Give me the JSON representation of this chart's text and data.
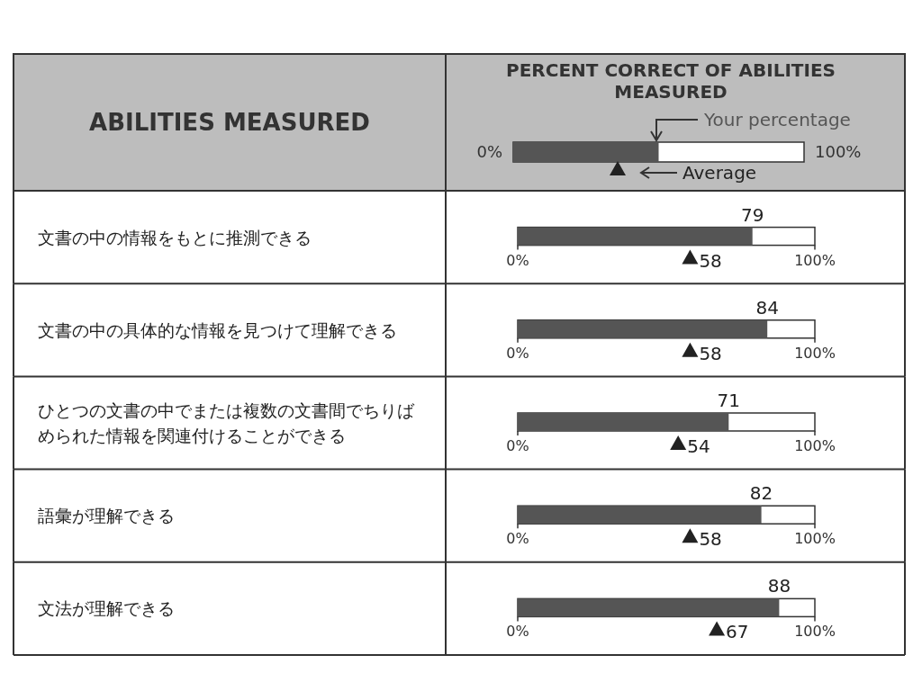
{
  "chart_data": {
    "type": "bar",
    "orientation": "horizontal",
    "title": "PERCENT CORRECT OF ABILITIES MEASURED",
    "ylabel": "ABILITIES MEASURED",
    "categories": [
      "文書の中の情報をもとに推測できる",
      "文書の中の具体的な情報を見つけて理解できる",
      "ひとつの文書の中でまたは複数の文書間でちりばめられた情報を関連付けることができる",
      "語彙が理解できる",
      "文法が理解できる"
    ],
    "series": [
      {
        "name": "Your percentage",
        "color": "#555555",
        "values": [
          79,
          84,
          71,
          82,
          88
        ]
      },
      {
        "name": "Average",
        "type": "scatter",
        "color": "#222222",
        "values": [
          58,
          58,
          54,
          58,
          67
        ]
      }
    ],
    "marker": "triangle",
    "xlim": [
      0,
      100
    ],
    "xticks": [
      {
        "value": 0,
        "label": "0%"
      },
      {
        "value": 100,
        "label": "100%"
      }
    ],
    "data_labels": true,
    "legend": "top",
    "grid": false
  }
}
